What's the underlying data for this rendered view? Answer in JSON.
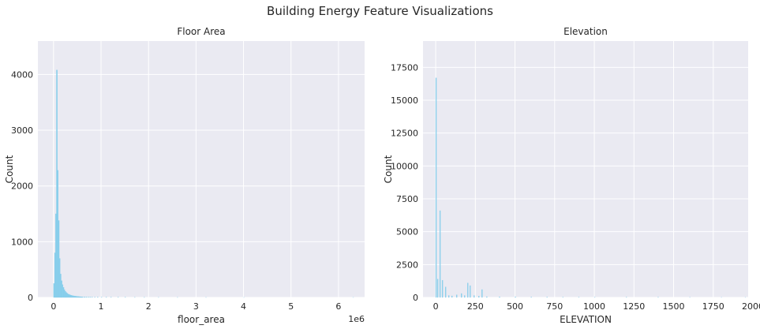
{
  "figure": {
    "title": "Building Energy Feature Visualizations"
  },
  "colors": {
    "background": "#eaeaf2",
    "grid": "#ffffff",
    "bar": "#87ceeb"
  },
  "chart_data": [
    {
      "type": "bar",
      "subtype": "histogram",
      "title": "Floor Area",
      "xlabel": "floor_area",
      "ylabel": "Count",
      "x_offset_label": "1e6",
      "xlim": [
        -0.33,
        6.55
      ],
      "ylim": [
        0,
        4600
      ],
      "xticks": [
        0,
        1,
        2,
        3,
        4,
        5,
        6
      ],
      "xtick_labels": [
        "0",
        "1",
        "2",
        "3",
        "4",
        "5",
        "6"
      ],
      "yticks": [
        0,
        1000,
        2000,
        3000,
        4000
      ],
      "ytick_labels": [
        "0",
        "1000",
        "2000",
        "3000",
        "4000"
      ],
      "grid": true,
      "bin_width": 0.02,
      "bins": [
        [
          0.0,
          250
        ],
        [
          0.02,
          800
        ],
        [
          0.04,
          1500
        ],
        [
          0.06,
          4080
        ],
        [
          0.08,
          2280
        ],
        [
          0.1,
          1380
        ],
        [
          0.12,
          700
        ],
        [
          0.14,
          420
        ],
        [
          0.16,
          300
        ],
        [
          0.18,
          230
        ],
        [
          0.2,
          180
        ],
        [
          0.22,
          140
        ],
        [
          0.24,
          110
        ],
        [
          0.26,
          90
        ],
        [
          0.28,
          75
        ],
        [
          0.3,
          60
        ],
        [
          0.32,
          55
        ],
        [
          0.34,
          45
        ],
        [
          0.36,
          40
        ],
        [
          0.38,
          35
        ],
        [
          0.4,
          30
        ],
        [
          0.42,
          28
        ],
        [
          0.44,
          25
        ],
        [
          0.46,
          22
        ],
        [
          0.48,
          20
        ],
        [
          0.5,
          18
        ],
        [
          0.52,
          16
        ],
        [
          0.54,
          14
        ],
        [
          0.56,
          13
        ],
        [
          0.58,
          12
        ],
        [
          0.6,
          11
        ],
        [
          0.64,
          10
        ],
        [
          0.68,
          9
        ],
        [
          0.72,
          8
        ],
        [
          0.76,
          8
        ],
        [
          0.8,
          7
        ],
        [
          0.86,
          6
        ],
        [
          0.92,
          6
        ],
        [
          1.0,
          5
        ],
        [
          1.1,
          5
        ],
        [
          1.2,
          4
        ],
        [
          1.35,
          4
        ],
        [
          1.5,
          3
        ],
        [
          1.7,
          2
        ],
        [
          1.9,
          2
        ],
        [
          2.2,
          1
        ],
        [
          2.6,
          1
        ],
        [
          3.2,
          1
        ],
        [
          4.0,
          1
        ],
        [
          6.3,
          1
        ]
      ]
    },
    {
      "type": "bar",
      "subtype": "histogram",
      "title": "Elevation",
      "xlabel": "ELEVATION",
      "ylabel": "Count",
      "xlim": [
        -80,
        1970
      ],
      "ylim": [
        0,
        19500
      ],
      "xticks": [
        0,
        250,
        500,
        750,
        1000,
        1250,
        1500,
        1750,
        2000
      ],
      "xtick_labels": [
        "0",
        "250",
        "500",
        "750",
        "1000",
        "1250",
        "1500",
        "1750",
        "2000"
      ],
      "yticks": [
        0,
        2500,
        5000,
        7500,
        10000,
        12500,
        15000,
        17500
      ],
      "ytick_labels": [
        "0",
        "2500",
        "5000",
        "7500",
        "10000",
        "12500",
        "15000",
        "17500"
      ],
      "grid": true,
      "bin_width": 5,
      "bins": [
        [
          0,
          16700
        ],
        [
          10,
          1400
        ],
        [
          25,
          6600
        ],
        [
          40,
          1300
        ],
        [
          60,
          800
        ],
        [
          80,
          150
        ],
        [
          100,
          120
        ],
        [
          130,
          200
        ],
        [
          160,
          300
        ],
        [
          180,
          150
        ],
        [
          200,
          1100
        ],
        [
          215,
          900
        ],
        [
          240,
          150
        ],
        [
          270,
          100
        ],
        [
          290,
          600
        ],
        [
          320,
          60
        ],
        [
          400,
          50
        ],
        [
          500,
          40
        ],
        [
          600,
          30
        ],
        [
          700,
          30
        ],
        [
          800,
          20
        ],
        [
          900,
          20
        ],
        [
          1000,
          15
        ],
        [
          1200,
          10
        ],
        [
          1400,
          10
        ],
        [
          1600,
          8
        ],
        [
          1800,
          5
        ],
        [
          1950,
          5
        ]
      ]
    }
  ]
}
